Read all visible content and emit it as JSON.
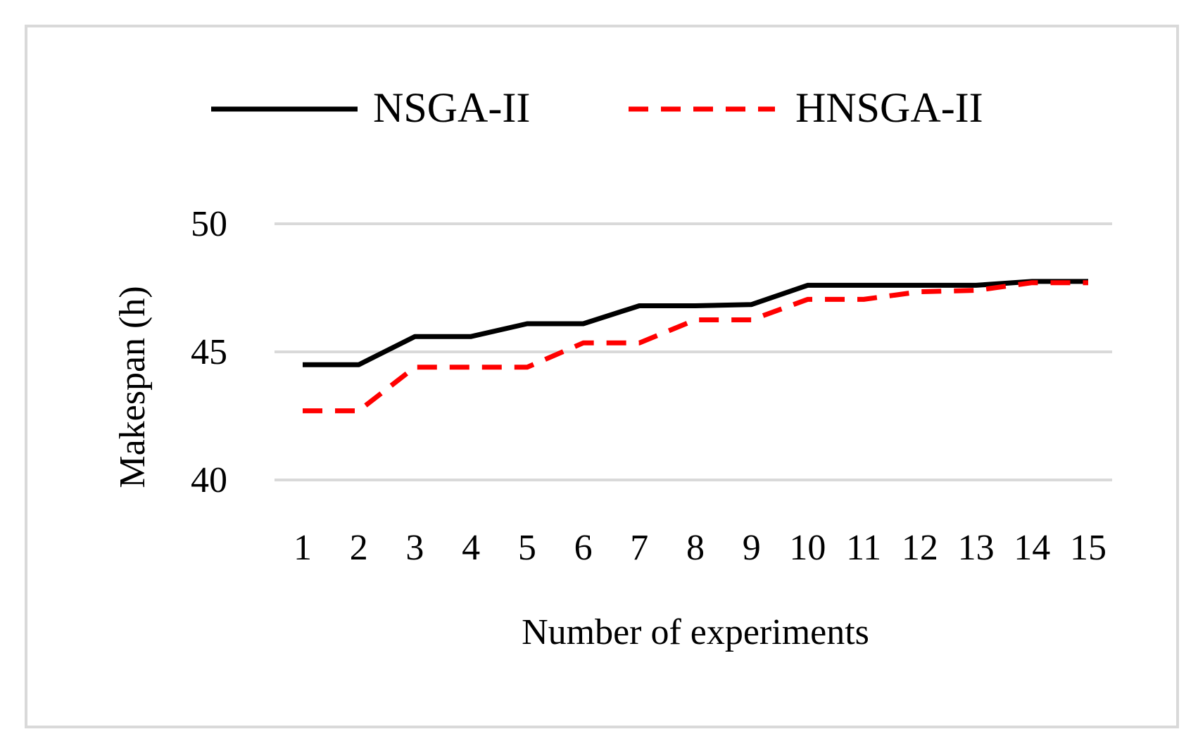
{
  "chart_data": {
    "type": "line",
    "title": "",
    "xlabel": "Number of experiments",
    "ylabel": "Makespan (h)",
    "categories": [
      "1",
      "2",
      "3",
      "4",
      "5",
      "6",
      "7",
      "8",
      "9",
      "10",
      "11",
      "12",
      "13",
      "14",
      "15"
    ],
    "ylim": [
      40,
      50
    ],
    "yticks": [
      40,
      45,
      50
    ],
    "grid": true,
    "legend_position": "top",
    "series": [
      {
        "name": "NSGA-II",
        "style": "solid",
        "color": "#000000",
        "values": [
          44.5,
          44.5,
          45.6,
          45.6,
          46.1,
          46.1,
          46.8,
          46.8,
          46.85,
          47.6,
          47.6,
          47.6,
          47.6,
          47.75,
          47.75
        ]
      },
      {
        "name": "HNSGA-II",
        "style": "dashed",
        "color": "#ff0000",
        "values": [
          42.7,
          42.7,
          44.4,
          44.4,
          44.4,
          45.35,
          45.35,
          46.25,
          46.25,
          47.05,
          47.05,
          47.35,
          47.4,
          47.7,
          47.7
        ]
      }
    ]
  },
  "colors": {
    "frame_border": "#d9d9d9",
    "gridline": "#d9d9d9",
    "text": "#000000"
  }
}
